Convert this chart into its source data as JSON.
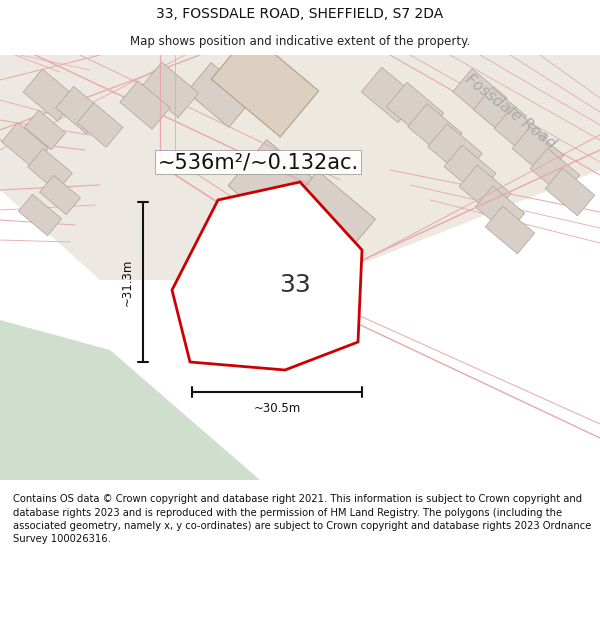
{
  "title": "33, FOSSDALE ROAD, SHEFFIELD, S7 2DA",
  "subtitle": "Map shows position and indicative extent of the property.",
  "area_text": "~536m²/~0.132ac.",
  "label_33": "33",
  "dim_height": "~31.3m",
  "dim_width": "~30.5m",
  "road_label": "Fossdale Road",
  "footer": "Contains OS data © Crown copyright and database right 2021. This information is subject to Crown copyright and database rights 2023 and is reproduced with the permission of HM Land Registry. The polygons (including the associated geometry, namely x, y co-ordinates) are subject to Crown copyright and database rights 2023 Ordnance Survey 100026316.",
  "bg_map": "#f2ede8",
  "green_area_color": "#d0dece",
  "building_fill_gray": "#d8d0c8",
  "building_fill_beige": "#ddd0c0",
  "building_stroke": "#bbaaa0",
  "road_color": "#f5c0c0",
  "road_outline_color": "#e8a8a8",
  "property_color": "#cc0000",
  "title_fontsize": 10,
  "subtitle_fontsize": 8.5,
  "area_fontsize": 15,
  "label_fontsize": 18,
  "footer_fontsize": 7.2,
  "road_label_fontsize": 11,
  "dim_fontsize": 8.5
}
